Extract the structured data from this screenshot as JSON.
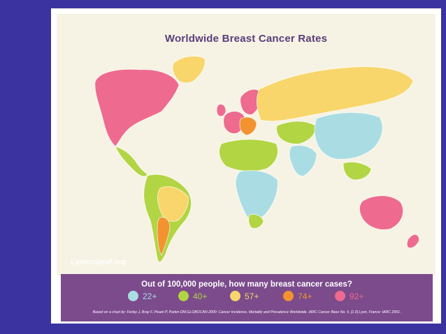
{
  "title": "Worldwide Breast Cancer Rates",
  "watermark": "Lemonland.org",
  "legend": {
    "question": "Out of 100,000 people, how many breast cancer cases?",
    "items": [
      {
        "label": "22+",
        "color": "#a9dde3"
      },
      {
        "label": "40+",
        "color": "#b2d543"
      },
      {
        "label": "57+",
        "color": "#f8d66b"
      },
      {
        "label": "74+",
        "color": "#f29330"
      },
      {
        "label": "92+",
        "color": "#ee6a8f"
      }
    ],
    "citation": "Based on a chart by: Ferlay J, Bray F, Pisani P, Parkin DM.GLOBOCAN 2000: Cancer Incidence, Mortality and Prevalence Worldwide. IARC Cancer Base No. 5. [1.0] Lyon, France: IARC 2001."
  },
  "regions": [
    {
      "name": "north-america",
      "rate": "92+"
    },
    {
      "name": "greenland",
      "rate": "57+"
    },
    {
      "name": "mexico-central-america",
      "rate": "40+"
    },
    {
      "name": "south-america",
      "rate": "40+"
    },
    {
      "name": "brazil",
      "rate": "57+"
    },
    {
      "name": "argentina",
      "rate": "74+"
    },
    {
      "name": "chile",
      "rate": "40+"
    },
    {
      "name": "scandinavia",
      "rate": "92+"
    },
    {
      "name": "western-europe",
      "rate": "92+"
    },
    {
      "name": "central-europe",
      "rate": "74+"
    },
    {
      "name": "russia",
      "rate": "57+"
    },
    {
      "name": "central-asia",
      "rate": "40+"
    },
    {
      "name": "east-asia",
      "rate": "22+"
    },
    {
      "name": "south-asia",
      "rate": "22+"
    },
    {
      "name": "north-africa",
      "rate": "40+"
    },
    {
      "name": "sub-saharan-africa",
      "rate": "22+"
    },
    {
      "name": "southern-africa",
      "rate": "40+"
    },
    {
      "name": "australia",
      "rate": "92+"
    },
    {
      "name": "new-zealand",
      "rate": "92+"
    },
    {
      "name": "southeast-asia",
      "rate": "40+"
    },
    {
      "name": "uk",
      "rate": "92+"
    }
  ]
}
